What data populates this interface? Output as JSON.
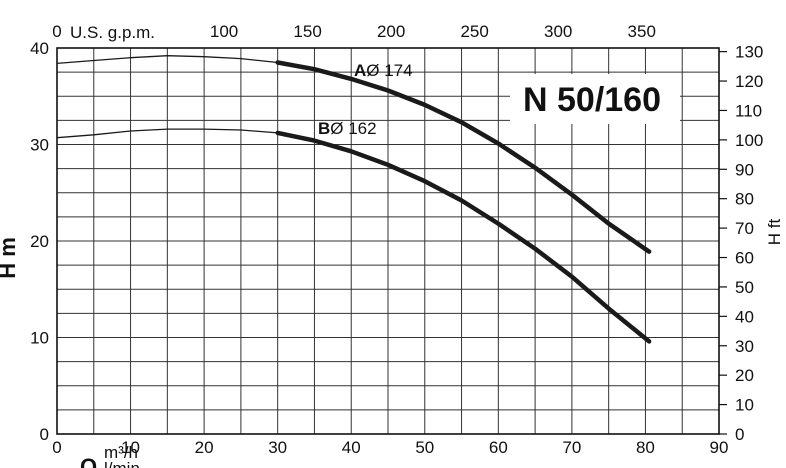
{
  "chart_data": {
    "type": "line",
    "model_label": "N 50/160",
    "x_bottom": {
      "symbol": "Q",
      "unit_flow": "m³/h",
      "unit_rate": "l/min",
      "range": [
        0,
        90
      ],
      "ticks": [
        "0",
        "10",
        "20",
        "30",
        "40",
        "50",
        "60",
        "70",
        "80",
        "90"
      ]
    },
    "x_top": {
      "label": "U.S. g.p.m.",
      "ticks": [
        "0",
        "100",
        "150",
        "200",
        "250",
        "300",
        "350"
      ]
    },
    "y_left": {
      "label": "H m",
      "range": [
        0,
        40
      ],
      "ticks": [
        "0",
        "10",
        "20",
        "30",
        "40"
      ]
    },
    "y_right": {
      "label": "H ft",
      "ticks": [
        "0",
        "10",
        "20",
        "30",
        "40",
        "50",
        "60",
        "70",
        "80",
        "90",
        "100",
        "110",
        "120",
        "130"
      ]
    },
    "grid": true,
    "series": [
      {
        "name": "A",
        "name_suffix": "Ø 174",
        "color": "#1a1a1a",
        "x": [
          0,
          5,
          10,
          15,
          20,
          25,
          30,
          35,
          40,
          45,
          50,
          55,
          60,
          65,
          70,
          75,
          80.5
        ],
        "y": [
          38.4,
          38.7,
          39.0,
          39.2,
          39.1,
          38.9,
          38.5,
          37.8,
          36.8,
          35.6,
          34.1,
          32.3,
          30.1,
          27.6,
          24.8,
          21.8,
          18.9
        ]
      },
      {
        "name": "B",
        "name_suffix": "Ø 162",
        "color": "#1a1a1a",
        "x": [
          0,
          5,
          10,
          15,
          20,
          25,
          30,
          35,
          40,
          45,
          50,
          55,
          60,
          65,
          70,
          75,
          80.5
        ],
        "y": [
          30.7,
          31.0,
          31.4,
          31.6,
          31.6,
          31.5,
          31.2,
          30.4,
          29.3,
          27.9,
          26.2,
          24.2,
          21.8,
          19.2,
          16.3,
          13.0,
          9.6
        ]
      }
    ]
  }
}
